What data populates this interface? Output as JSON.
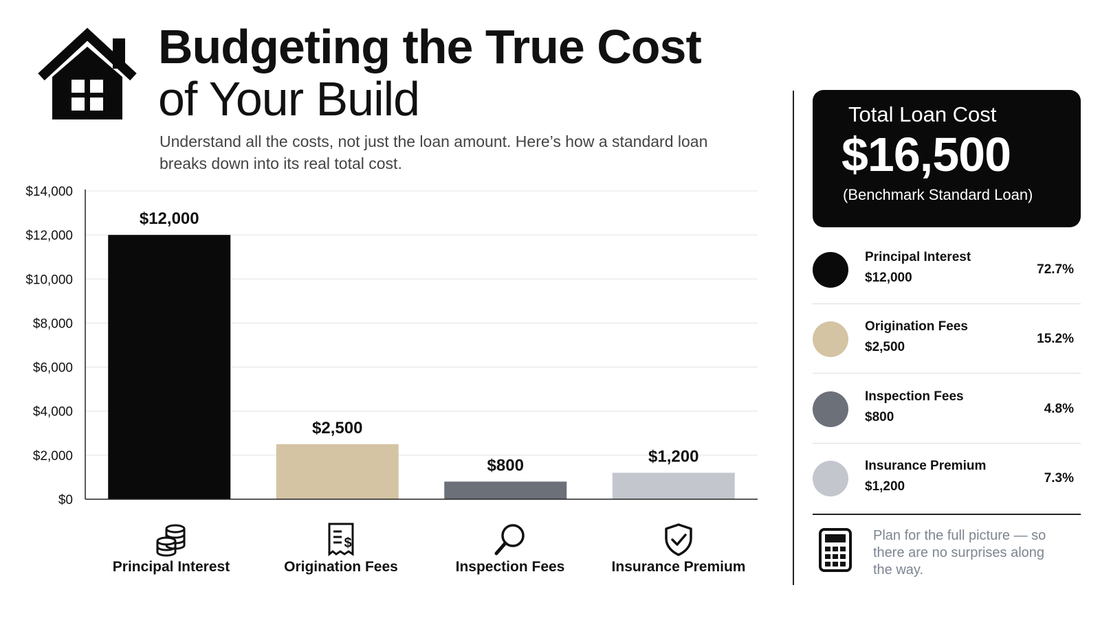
{
  "header": {
    "title_line1": "Budgeting the True Cost",
    "title_line2": "of Your Build",
    "subtitle": "Understand all the costs, not just the loan amount. Here’s how a standard loan breaks down into its real total cost.",
    "icon": "house-icon"
  },
  "chart_data": {
    "type": "bar",
    "title": "",
    "xlabel": "",
    "ylabel": "",
    "categories": [
      "Principal Interest",
      "Origination Fees",
      "Inspection Fees",
      "Insurance Premium"
    ],
    "values": [
      12000,
      2500,
      800,
      1200
    ],
    "value_labels": [
      "$12,000",
      "$2,500",
      "$800",
      "$1,200"
    ],
    "bar_colors": [
      "#0a0a0a",
      "#d4c4a4",
      "#6b7079",
      "#c3c7cd"
    ],
    "category_icons": [
      "coin-stack-icon",
      "invoice-icon",
      "magnifier-icon",
      "shield-check-icon"
    ],
    "ylim": [
      0,
      14000
    ],
    "yticks": [
      0,
      2000,
      4000,
      6000,
      8000,
      10000,
      12000,
      14000
    ],
    "ytick_labels": [
      "$0",
      "$2,000",
      "$4,000",
      "$6,000",
      "$8,000",
      "$10,000",
      "$12,000",
      "$14,000"
    ],
    "grid": true,
    "legend": "right"
  },
  "summary": {
    "card_label": "Total Loan Cost",
    "card_value": "$16,500",
    "card_note": "(Benchmark Standard Loan)",
    "items": [
      {
        "name": "Principal Interest",
        "amount": "$12,000",
        "percent": "72.7%",
        "color": "#0a0a0a"
      },
      {
        "name": "Origination Fees",
        "amount": "$2,500",
        "percent": "15.2%",
        "color": "#d4c4a4"
      },
      {
        "name": "Inspection Fees",
        "amount": "$800",
        "percent": "4.8%",
        "color": "#6b7079"
      },
      {
        "name": "Insurance Premium",
        "amount": "$1,200",
        "percent": "7.3%",
        "color": "#c3c7cd"
      }
    ],
    "footer_icon": "calculator-icon",
    "footer_note": "Plan for the full picture — so there are no surprises along the way."
  }
}
